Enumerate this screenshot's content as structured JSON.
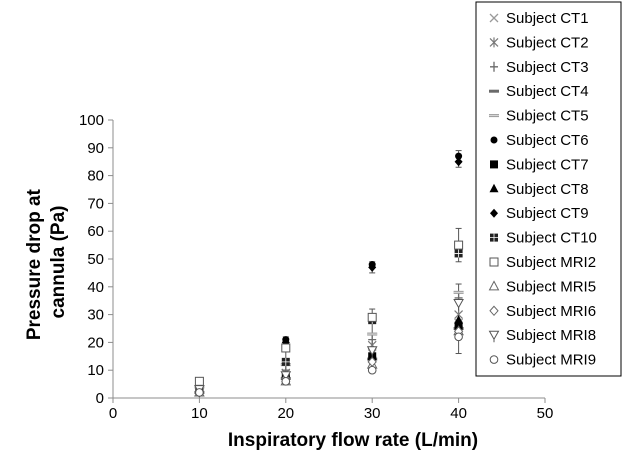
{
  "chart_data": {
    "type": "scatter",
    "xlabel": "Inspiratory flow rate (L/min)",
    "ylabel_lines": [
      "Pressure drop at",
      "cannula (Pa)"
    ],
    "xlim": [
      0,
      50
    ],
    "ylim": [
      0,
      100
    ],
    "x_ticks": [
      0,
      10,
      20,
      30,
      40,
      50
    ],
    "y_ticks": [
      0,
      10,
      20,
      30,
      40,
      50,
      60,
      70,
      80,
      90,
      100
    ],
    "grid": false,
    "legend_position": "top-right",
    "series": [
      {
        "name": "Subject CT1",
        "marker": "x",
        "color": "#9a9a9a",
        "x": [
          10,
          20,
          30,
          40
        ],
        "y": [
          3,
          8,
          16,
          27
        ]
      },
      {
        "name": "Subject CT2",
        "marker": "star",
        "color": "#7a7a7a",
        "x": [
          10,
          20,
          30,
          40
        ],
        "y": [
          4,
          9,
          19,
          30
        ]
      },
      {
        "name": "Subject CT3",
        "marker": "plus",
        "color": "#6a6a6a",
        "x": [
          10,
          20,
          30,
          40
        ],
        "y": [
          3,
          10,
          21,
          36
        ]
      },
      {
        "name": "Subject CT4",
        "marker": "dash",
        "color": "#6a6a6a",
        "x": [
          10,
          20,
          30,
          40
        ],
        "y": [
          2,
          7,
          14,
          25
        ]
      },
      {
        "name": "Subject CT5",
        "marker": "dash-light",
        "color": "#9a9a9a",
        "x": [
          10,
          20,
          30,
          40
        ],
        "y": [
          4,
          12,
          23,
          38
        ]
      },
      {
        "name": "Subject CT6",
        "marker": "circle",
        "color": "#000000",
        "x": [
          10,
          20,
          30,
          40
        ],
        "y": [
          5,
          21,
          48,
          87
        ]
      },
      {
        "name": "Subject CT7",
        "marker": "square",
        "color": "#000000",
        "x": [
          10,
          20,
          30,
          40
        ],
        "y": [
          3,
          8,
          15,
          26
        ]
      },
      {
        "name": "Subject CT8",
        "marker": "triangle",
        "color": "#000000",
        "x": [
          10,
          20,
          30,
          40
        ],
        "y": [
          3,
          7,
          15,
          28
        ]
      },
      {
        "name": "Subject CT9",
        "marker": "diamond",
        "color": "#000000",
        "x": [
          10,
          20,
          30,
          40
        ],
        "y": [
          6,
          20,
          47,
          85
        ]
      },
      {
        "name": "Subject CT10",
        "marker": "square-grid",
        "color": "#222222",
        "x": [
          10,
          20,
          30,
          40
        ],
        "y": [
          4,
          13,
          28,
          52
        ]
      },
      {
        "name": "Subject MRI2",
        "marker": "square-open",
        "color": "#555555",
        "x": [
          10,
          20,
          30,
          40
        ],
        "y": [
          6,
          18,
          29,
          55
        ]
      },
      {
        "name": "Subject MRI5",
        "marker": "triangle-open",
        "color": "#666666",
        "x": [
          10,
          20,
          30,
          40
        ],
        "y": [
          2,
          6,
          12,
          24
        ]
      },
      {
        "name": "Subject MRI6",
        "marker": "diamond-open",
        "color": "#666666",
        "x": [
          10,
          20,
          30,
          40
        ],
        "y": [
          2,
          7,
          13,
          24
        ]
      },
      {
        "name": "Subject MRI8",
        "marker": "tri-down-open",
        "color": "#555555",
        "x": [
          10,
          20,
          30,
          40
        ],
        "y": [
          3,
          8,
          17,
          34
        ]
      },
      {
        "name": "Subject MRI9",
        "marker": "circle-open",
        "color": "#555555",
        "x": [
          10,
          20,
          30,
          40
        ],
        "y": [
          2,
          6,
          10,
          22
        ]
      }
    ],
    "error_bars": [
      {
        "x": 10,
        "low": 1,
        "high": 7
      },
      {
        "x": 20,
        "low": 5,
        "high": 22
      },
      {
        "x": 30,
        "low": 9,
        "high": 32
      },
      {
        "x": 30,
        "low": 45,
        "high": 49
      },
      {
        "x": 40,
        "low": 16,
        "high": 41
      },
      {
        "x": 40,
        "low": 49,
        "high": 61
      },
      {
        "x": 40,
        "low": 83,
        "high": 89
      }
    ]
  }
}
